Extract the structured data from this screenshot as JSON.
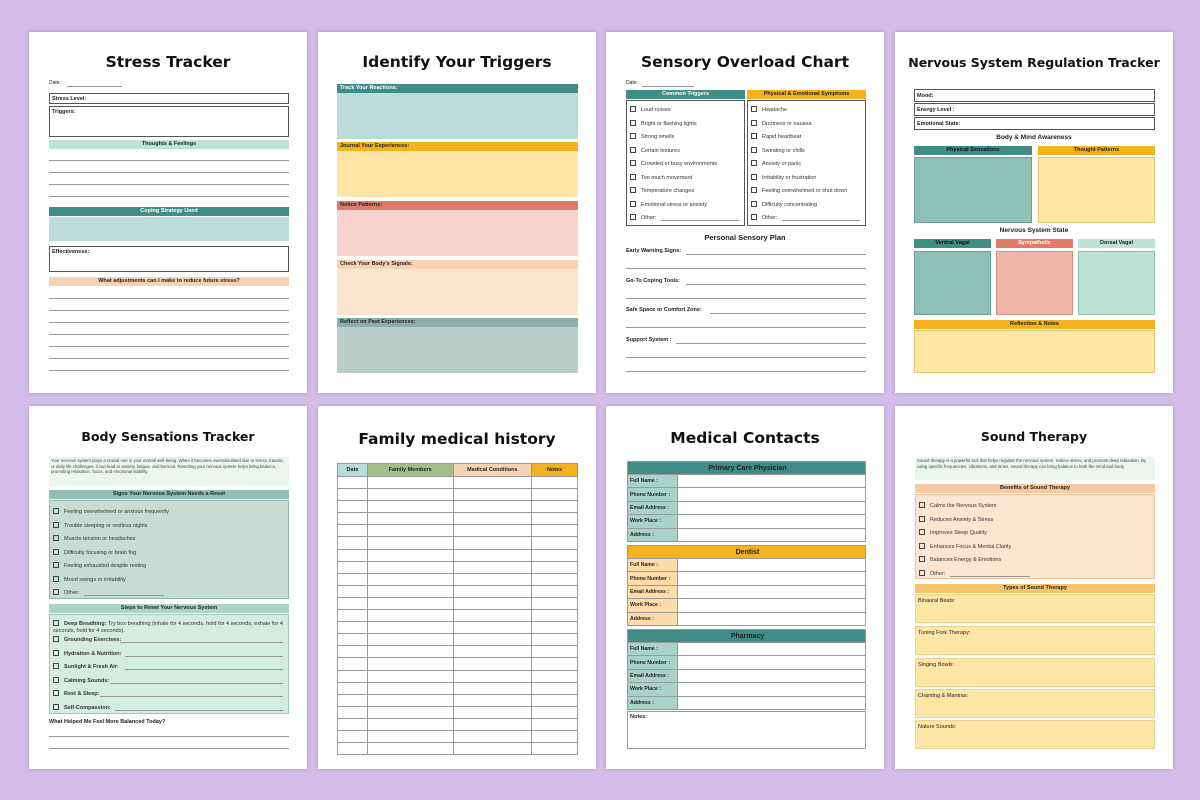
{
  "stress": {
    "title": "Stress Tracker",
    "date": "Date:",
    "stress_level": "Stress Level:",
    "triggers": "Triggers:",
    "thoughts": "Thoughts & Feelings",
    "coping": "Coping Strategy Used",
    "effectiveness": "Effectiveness:",
    "adjust": "What adjustments can I make to reduce future stress?"
  },
  "triggers": {
    "title": "Identify Your Triggers",
    "sections": [
      "Track Your Reactions:",
      "Journal Your Experiences:",
      "Notice Patterns:",
      "Check Your Body's Signals:",
      "Reflect on Past Experiences:"
    ]
  },
  "sensory": {
    "title": "Sensory Overload Chart",
    "date": "Date:",
    "col1": "Common Triggers",
    "col2": "Physical & Emotional Symptoms",
    "triggers": [
      "Loud noises",
      "Bright or flashing lights",
      "Strong smells",
      "Certain textures",
      "Crowded or busy environments",
      "Too much movement",
      "Temperature changes",
      "Emotional stress or anxiety",
      "Other:"
    ],
    "symptoms": [
      "Headache",
      "Dizziness or nausea",
      "Rapid heartbeat",
      "Sweating or chills",
      "Anxiety or panic",
      "Irritability or frustration",
      "Feeling overwhelmed or shut down",
      "Difficulty concentrating",
      "Other:"
    ],
    "plan_title": "Personal Sensory Plan",
    "plan": [
      "Early Warning Signs:",
      "Go-To Coping Tools:",
      "Safe Space or Comfort Zone:",
      "Support System :"
    ]
  },
  "nervous": {
    "title": "Nervous System Regulation Tracker",
    "mood": "Mood:",
    "energy": "Energy Level :",
    "emotional": "Emotional State:",
    "body_mind": "Body & Mind Awareness",
    "physical": "Physical Sensations",
    "thought": "Thought Patterns",
    "state": "Nervous System State",
    "ventral": "Ventral Vagal",
    "sympathetic": "Sympathetic",
    "dorsal": "Dorsal Vagal",
    "reflection": "Reflection & Notes"
  },
  "body": {
    "title": "Body Sensations Tracker",
    "intro": "Your nervous system plays a crucial role in your overall well-being. When it becomes overstimulated due to stress, trauma, or daily life challenges, it can lead to anxiety, fatigue, and burnout. Resetting your nervous system helps bring balance, promoting relaxation, focus, and emotional stability.",
    "signs_title": "Signs Your Nervous System Needs a Reset",
    "signs": [
      "Feeling overwhelmed or anxious frequently",
      "Trouble sleeping or restless nights",
      "Muscle tension or headaches",
      "Difficulty focusing or brain fog",
      "Feeling exhausted despite resting",
      "Mood swings or irritability",
      "Other:"
    ],
    "steps_title": "Steps to Reset Your Nervous System",
    "deep_label": "Deep Breathing:",
    "deep_text": "Try box breathing (inhale for 4 seconds, hold for 4 seconds, exhale for 4 seconds, hold for 4 seconds).",
    "steps": [
      "Grounding Exercises:",
      "Hydration & Nutrition:",
      "Sunlight & Fresh Air:",
      "Calming Sounds:",
      "Rest & Sleep:",
      "Self-Compassion:"
    ],
    "question": "What Helped Me Feel More Balanced Today?"
  },
  "family": {
    "title": "Family medical history",
    "cols": [
      "Date",
      "Family Members",
      "Medical Conditions",
      "Notes"
    ]
  },
  "contacts": {
    "title": "Medical Contacts",
    "primary": "Primary Care Physician",
    "dentist": "Dentist",
    "pharmacy": "Pharmacy",
    "fields": [
      "Full Name :",
      "Phone Number :",
      "Email Address :",
      "Work Place :",
      "Address :"
    ],
    "notes": "Notes:"
  },
  "sound": {
    "title": "Sound Therapy",
    "intro": "Sound therapy is a powerful tool that helps regulate the nervous system, reduce stress, and promote deep relaxation. By using specific frequencies, vibrations, and tones, sound therapy can bring balance to both the mind and body.",
    "benefits_title": "Benefits of Sound Therapy",
    "benefits": [
      "Calms the Nervous System",
      "Reduces Anxiety & Stress",
      "Improves Sleep Quality",
      "Enhances Focus & Mental Clarity",
      "Balances Energy & Emotions",
      "Other:"
    ],
    "types_title": "Types of Sound Therapy",
    "types": [
      "Binaural Beats:",
      "Tuning Fork Therapy:",
      "Singing Bowls:",
      "Chanting & Mantras:",
      "Nature Sounds:"
    ]
  }
}
